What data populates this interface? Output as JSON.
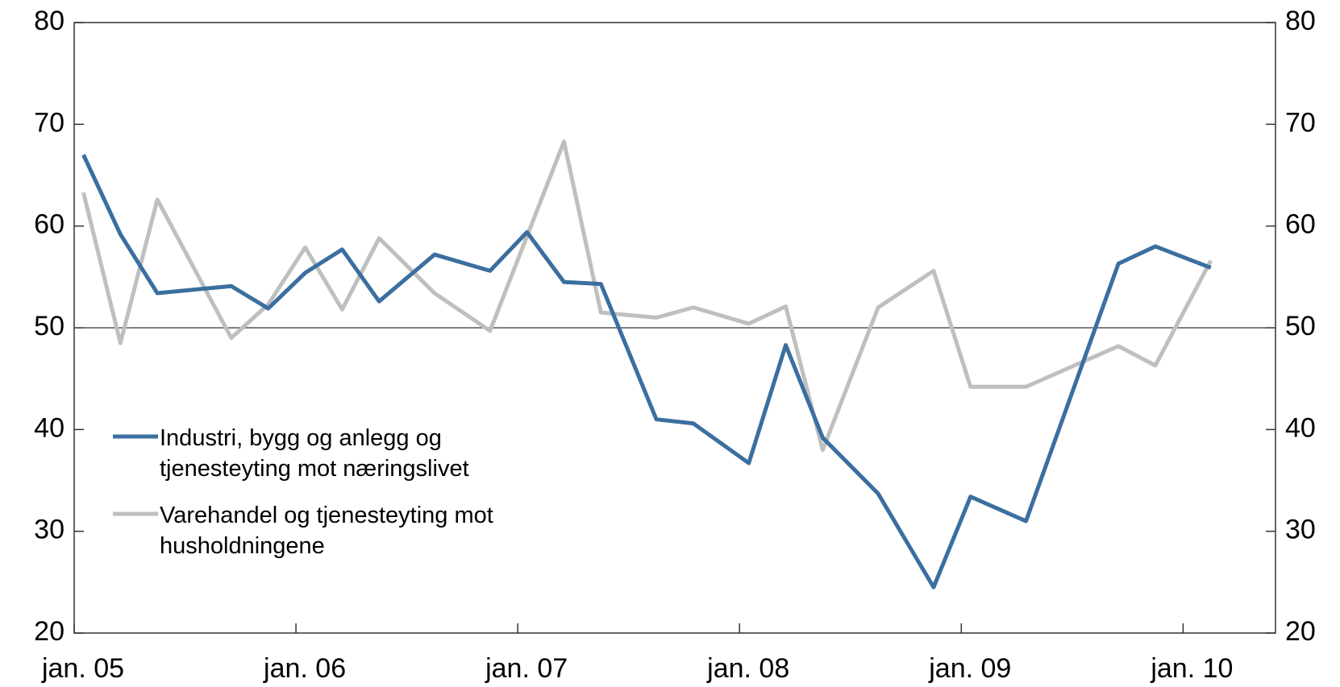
{
  "chart_data": {
    "type": "line",
    "xlim": [
      0,
      65
    ],
    "xticks": [
      {
        "value": 0,
        "label": "jan. 05"
      },
      {
        "value": 12,
        "label": "jan. 06"
      },
      {
        "value": 24,
        "label": "jan. 07"
      },
      {
        "value": 36,
        "label": "jan. 08"
      },
      {
        "value": 48,
        "label": "jan. 09"
      },
      {
        "value": 60,
        "label": "jan. 10"
      }
    ],
    "ylim": [
      20,
      80
    ],
    "yticks": [
      20,
      30,
      40,
      50,
      60,
      70,
      80
    ],
    "y2lim": [
      20,
      80
    ],
    "y2ticks": [
      20,
      30,
      40,
      50,
      60,
      70,
      80
    ],
    "reference_line": 50,
    "legend": "left",
    "series": [
      {
        "name": "Industri, bygg og anlegg og tjenesteyting mot næringslivet",
        "color": "#3a6f9f",
        "x": [
          0.5,
          2.5,
          4.5,
          8.5,
          10.5,
          12.5,
          14.5,
          16.5,
          19.5,
          22.5,
          24.5,
          26.5,
          28.5,
          31.5,
          33.5,
          36.5,
          38.5,
          40.5,
          43.5,
          46.5,
          48.5,
          51.5,
          56.5,
          58.5,
          61.5
        ],
        "values": [
          67,
          59.2,
          53.4,
          54.1,
          51.9,
          55.4,
          57.7,
          52.6,
          57.2,
          55.6,
          59.4,
          54.5,
          54.3,
          41,
          40.6,
          36.7,
          48.3,
          39.2,
          33.7,
          24.5,
          33.4,
          31,
          56.3,
          58,
          55.9
        ]
      },
      {
        "name": "Varehandel og tjenesteyting mot husholdningene",
        "color": "#bfbfbf",
        "x": [
          0.5,
          2.5,
          4.5,
          8.5,
          10.5,
          12.5,
          14.5,
          16.5,
          19.5,
          22.5,
          24.5,
          26.5,
          28.5,
          31.5,
          33.5,
          36.5,
          38.5,
          40.5,
          43.5,
          46.5,
          48.5,
          51.5,
          56.5,
          58.5,
          61.5
        ],
        "values": [
          63.3,
          48.5,
          62.6,
          49,
          52.3,
          57.9,
          51.8,
          58.8,
          53.4,
          49.7,
          59,
          68.3,
          51.5,
          51,
          52,
          50.4,
          52.1,
          38,
          52,
          55.6,
          44.2,
          44.2,
          48.2,
          46.3,
          56.6
        ]
      }
    ]
  }
}
